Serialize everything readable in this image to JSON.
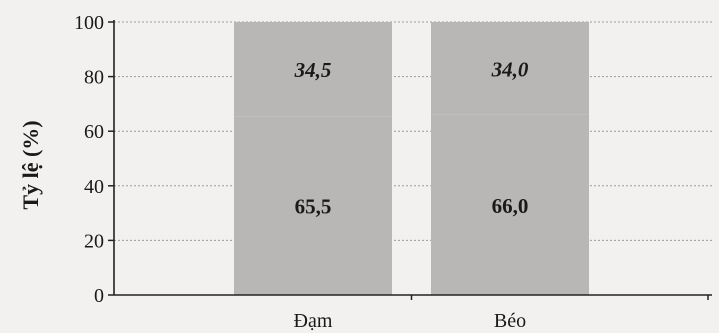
{
  "chart_data": {
    "type": "bar",
    "stacked": true,
    "percent": true,
    "categories": [
      "Đạm",
      "Béo"
    ],
    "series": [
      {
        "values": [
          65.5,
          66.0
        ],
        "labels": [
          "65,5",
          "66,0"
        ],
        "label_style": "bold"
      },
      {
        "values": [
          34.5,
          34.0
        ],
        "labels": [
          "34,5",
          "34,0"
        ],
        "label_style": "bold-italic"
      }
    ],
    "ylabel": "Tỷ lệ (%)",
    "xlabel": "",
    "ylim": [
      0,
      100
    ],
    "yticks": [
      0,
      20,
      40,
      60,
      80,
      100
    ],
    "grid": "horizontal-dotted",
    "legend": "none",
    "colors": {
      "bar": "#b9b7b5",
      "grid": "#9a9a9a",
      "axis": "#222222"
    }
  }
}
